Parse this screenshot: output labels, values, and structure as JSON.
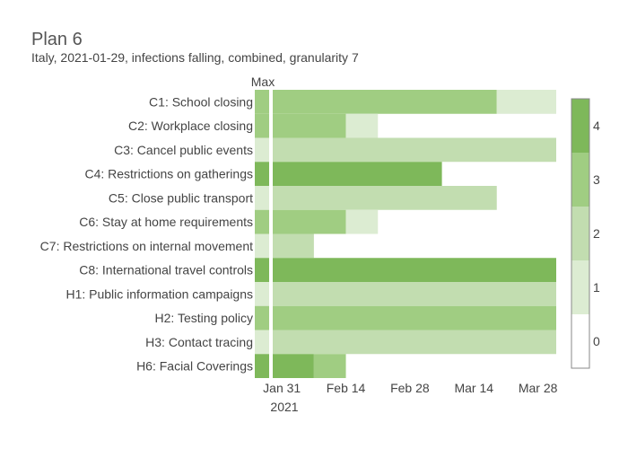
{
  "title": "Plan 6",
  "subtitle": "Italy, 2021-01-29, infections falling, combined, granularity 7",
  "max_label": "Max",
  "colors": {
    "levels": [
      "#ffffff",
      "#dcecd2",
      "#c2ddb0",
      "#a0cd82",
      "#7eb85a"
    ],
    "separator": "#ffffff",
    "colorbar_border": "#888888"
  },
  "chart_data": {
    "type": "heatmap",
    "x_axis": {
      "tick_labels": [
        "Jan 31",
        "Feb 14",
        "Feb 28",
        "Mar 14",
        "Mar 28"
      ],
      "tick_dates": [
        "2021-01-31",
        "2021-02-14",
        "2021-02-28",
        "2021-03-14",
        "2021-03-28"
      ],
      "year_label": "2021"
    },
    "max_column_levels": [
      3,
      3,
      1,
      4,
      1,
      3,
      1,
      4,
      1,
      3,
      1,
      4
    ],
    "rows": [
      {
        "label": "C1: School closing",
        "segments": [
          {
            "start": "2021-01-29",
            "end": "2021-03-19",
            "level": 3
          },
          {
            "start": "2021-03-19",
            "end": "2021-04-01",
            "level": 1
          }
        ]
      },
      {
        "label": "C2: Workplace closing",
        "segments": [
          {
            "start": "2021-01-29",
            "end": "2021-02-14",
            "level": 3
          },
          {
            "start": "2021-02-14",
            "end": "2021-02-21",
            "level": 1
          }
        ]
      },
      {
        "label": "C3: Cancel public events",
        "segments": [
          {
            "start": "2021-01-29",
            "end": "2021-04-01",
            "level": 2
          }
        ]
      },
      {
        "label": "C4: Restrictions on gatherings",
        "segments": [
          {
            "start": "2021-01-29",
            "end": "2021-03-07",
            "level": 4
          }
        ]
      },
      {
        "label": "C5: Close public transport",
        "segments": [
          {
            "start": "2021-01-29",
            "end": "2021-03-19",
            "level": 2
          }
        ]
      },
      {
        "label": "C6: Stay at home requirements",
        "segments": [
          {
            "start": "2021-01-29",
            "end": "2021-02-14",
            "level": 3
          },
          {
            "start": "2021-02-14",
            "end": "2021-02-21",
            "level": 1
          }
        ]
      },
      {
        "label": "C7: Restrictions on internal movement",
        "segments": [
          {
            "start": "2021-01-29",
            "end": "2021-02-07",
            "level": 2
          }
        ]
      },
      {
        "label": "C8: International travel controls",
        "segments": [
          {
            "start": "2021-01-29",
            "end": "2021-04-01",
            "level": 4
          }
        ]
      },
      {
        "label": "H1: Public information campaigns",
        "segments": [
          {
            "start": "2021-01-29",
            "end": "2021-04-01",
            "level": 2
          }
        ]
      },
      {
        "label": "H2: Testing policy",
        "segments": [
          {
            "start": "2021-01-29",
            "end": "2021-04-01",
            "level": 3
          }
        ]
      },
      {
        "label": "H3: Contact tracing",
        "segments": [
          {
            "start": "2021-01-29",
            "end": "2021-04-01",
            "level": 2
          }
        ]
      },
      {
        "label": "H6: Facial Coverings",
        "segments": [
          {
            "start": "2021-01-29",
            "end": "2021-02-07",
            "level": 4
          },
          {
            "start": "2021-02-07",
            "end": "2021-02-14",
            "level": 3
          }
        ]
      }
    ],
    "colorbar": {
      "tick_labels": [
        "0",
        "1",
        "2",
        "3",
        "4"
      ],
      "min": -0.5,
      "max": 4.5
    }
  }
}
